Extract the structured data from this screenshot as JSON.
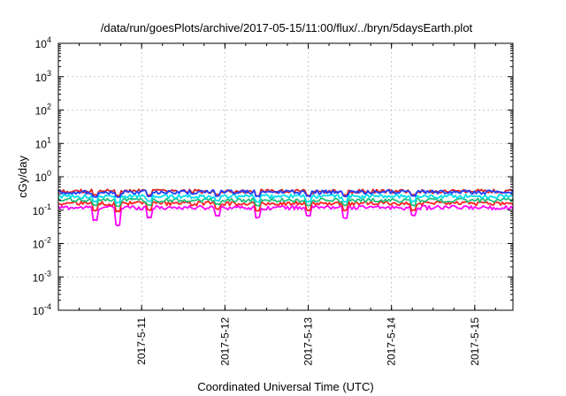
{
  "chart_data": {
    "type": "line",
    "title": "/data/run/goesPlots/archive/2017-05-15/11:00/flux/../bryn/5daysEarth.plot",
    "xlabel": "Coordinated Universal Time (UTC)",
    "ylabel": "cGy/day",
    "yscale": "log",
    "ylim": [
      0.0001,
      10000
    ],
    "xlim": [
      "2017-05-10 00:00",
      "2017-05-15 11:00"
    ],
    "x_ticks": [
      "2017-5-11",
      "2017-5-12",
      "2017-5-13",
      "2017-5-14",
      "2017-5-15"
    ],
    "y_ticks": [
      {
        "value": 10000,
        "base": "10",
        "exp": "4"
      },
      {
        "value": 1000,
        "base": "10",
        "exp": "3"
      },
      {
        "value": 100,
        "base": "10",
        "exp": "2"
      },
      {
        "value": 10,
        "base": "10",
        "exp": "1"
      },
      {
        "value": 1,
        "base": "10",
        "exp": "0"
      },
      {
        "value": 0.1,
        "base": "10",
        "exp": "-1"
      },
      {
        "value": 0.01,
        "base": "10",
        "exp": "-2"
      },
      {
        "value": 0.001,
        "base": "10",
        "exp": "-3"
      },
      {
        "value": 0.0001,
        "base": "10",
        "exp": "-4"
      }
    ],
    "grid": true,
    "series": [
      {
        "color": "#ff00ff",
        "base": 0.12,
        "dips": [
          0.05,
          0.035,
          0.06,
          0.07,
          0.06,
          0.07,
          0.06,
          0.07
        ]
      },
      {
        "color": "#ff2020",
        "base": 0.16,
        "dips": [
          0.1,
          0.09,
          0.1,
          0.11,
          0.1,
          0.1,
          0.1,
          0.1
        ]
      },
      {
        "color": "#20c080",
        "base": 0.2,
        "dips": [
          0.14,
          0.13,
          0.14,
          0.15,
          0.14,
          0.14,
          0.14,
          0.14
        ]
      },
      {
        "color": "#00ddee",
        "base": 0.26,
        "dips": [
          0.18,
          0.17,
          0.18,
          0.19,
          0.18,
          0.18,
          0.18,
          0.18
        ]
      },
      {
        "color": "#e02020",
        "base": 0.37,
        "dips": [
          0.28,
          0.27,
          0.28,
          0.29,
          0.28,
          0.28,
          0.28,
          0.28
        ]
      },
      {
        "color": "#2040ff",
        "base": 0.35,
        "dips": [
          0.26,
          0.25,
          0.26,
          0.27,
          0.26,
          0.26,
          0.26,
          0.26
        ]
      }
    ]
  }
}
